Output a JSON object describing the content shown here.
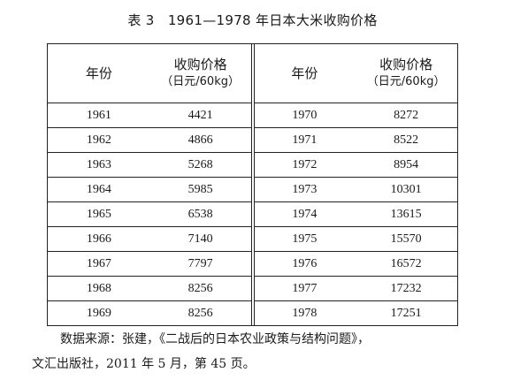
{
  "title": "表 3　1961—1978 年日本大米收购价格",
  "headers": {
    "year": "年份",
    "price": "收购价格",
    "unit": "（日元/60kg）"
  },
  "rows": [
    {
      "y1": "1961",
      "p1": "4421",
      "y2": "1970",
      "p2": "8272"
    },
    {
      "y1": "1962",
      "p1": "4866",
      "y2": "1971",
      "p2": "8522"
    },
    {
      "y1": "1963",
      "p1": "5268",
      "y2": "1972",
      "p2": "8954"
    },
    {
      "y1": "1964",
      "p1": "5985",
      "y2": "1973",
      "p2": "10301"
    },
    {
      "y1": "1965",
      "p1": "6538",
      "y2": "1974",
      "p2": "13615"
    },
    {
      "y1": "1966",
      "p1": "7140",
      "y2": "1975",
      "p2": "15570"
    },
    {
      "y1": "1967",
      "p1": "7797",
      "y2": "1976",
      "p2": "16572"
    },
    {
      "y1": "1968",
      "p1": "8256",
      "y2": "1977",
      "p2": "17232"
    },
    {
      "y1": "1969",
      "p1": "8256",
      "y2": "1978",
      "p2": "17251"
    }
  ],
  "footer": {
    "line1": "数据来源：张建，《二战后的日本农业政策与结构问题》，",
    "line2": "文汇出版社，2011 年 5 月，第 45 页。"
  }
}
